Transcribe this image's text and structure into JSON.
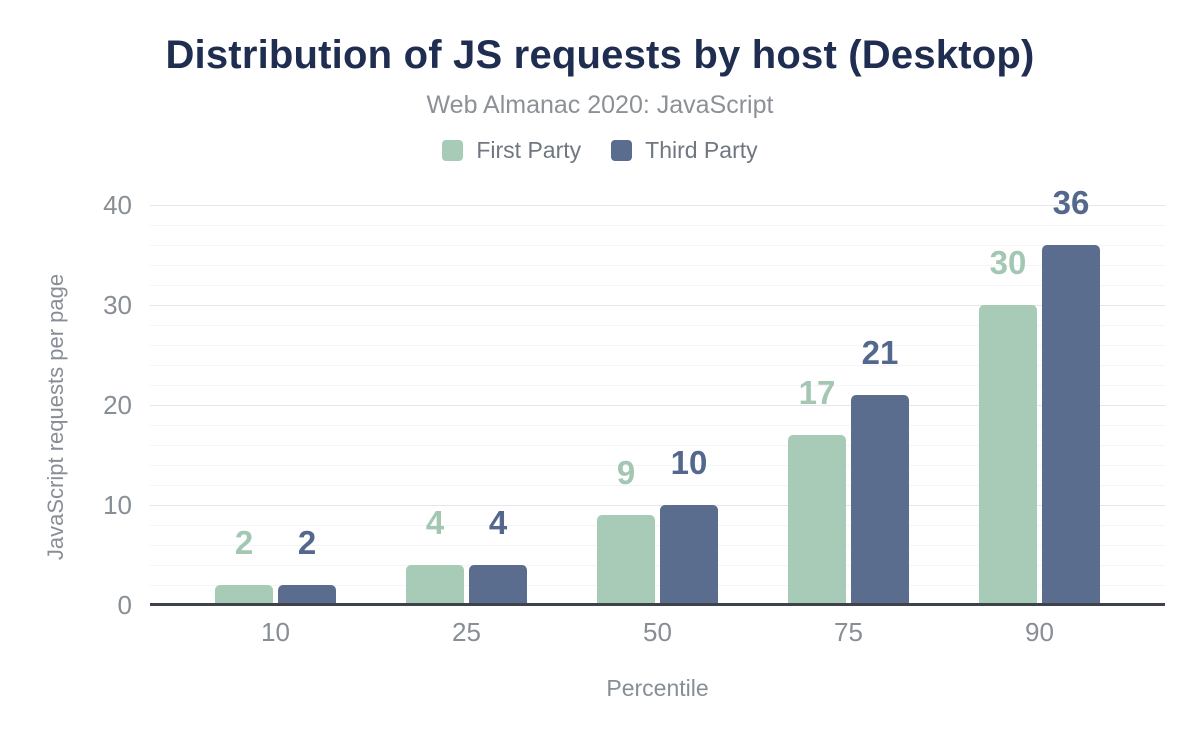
{
  "header": {
    "title": "Distribution of JS requests by host (Desktop)",
    "subtitle": "Web Almanac 2020: JavaScript"
  },
  "chart_data": {
    "type": "bar",
    "title": "Distribution of JS requests by host (Desktop)",
    "subtitle": "Web Almanac 2020: JavaScript",
    "categories": [
      "10",
      "25",
      "50",
      "75",
      "90"
    ],
    "series": [
      {
        "name": "First Party",
        "color": "#a8cbb7",
        "label_color": "#a3c7b2",
        "values": [
          2,
          4,
          9,
          17,
          30
        ]
      },
      {
        "name": "Third Party",
        "color": "#5b6d8f",
        "label_color": "#54678c",
        "values": [
          2,
          4,
          10,
          21,
          36
        ]
      }
    ],
    "xlabel": "Percentile",
    "ylabel": "JavaScript requests per page",
    "ylim": [
      0,
      40
    ],
    "y_ticks": [
      0,
      10,
      20,
      30,
      40
    ],
    "minor_grid_step": 2,
    "grid": true,
    "legend_position": "top",
    "bar_value_labels_shown": true
  },
  "colors": {
    "title_color": "#1e2d50",
    "subtitle_color": "#8d9197",
    "legend_text": "#6f7780",
    "axis_text": "#878e96",
    "grid_major": "#e4e6e8",
    "grid_minor": "#f4f5f6",
    "baseline_color": "#3e434b",
    "page_bg": "#ffffff"
  }
}
